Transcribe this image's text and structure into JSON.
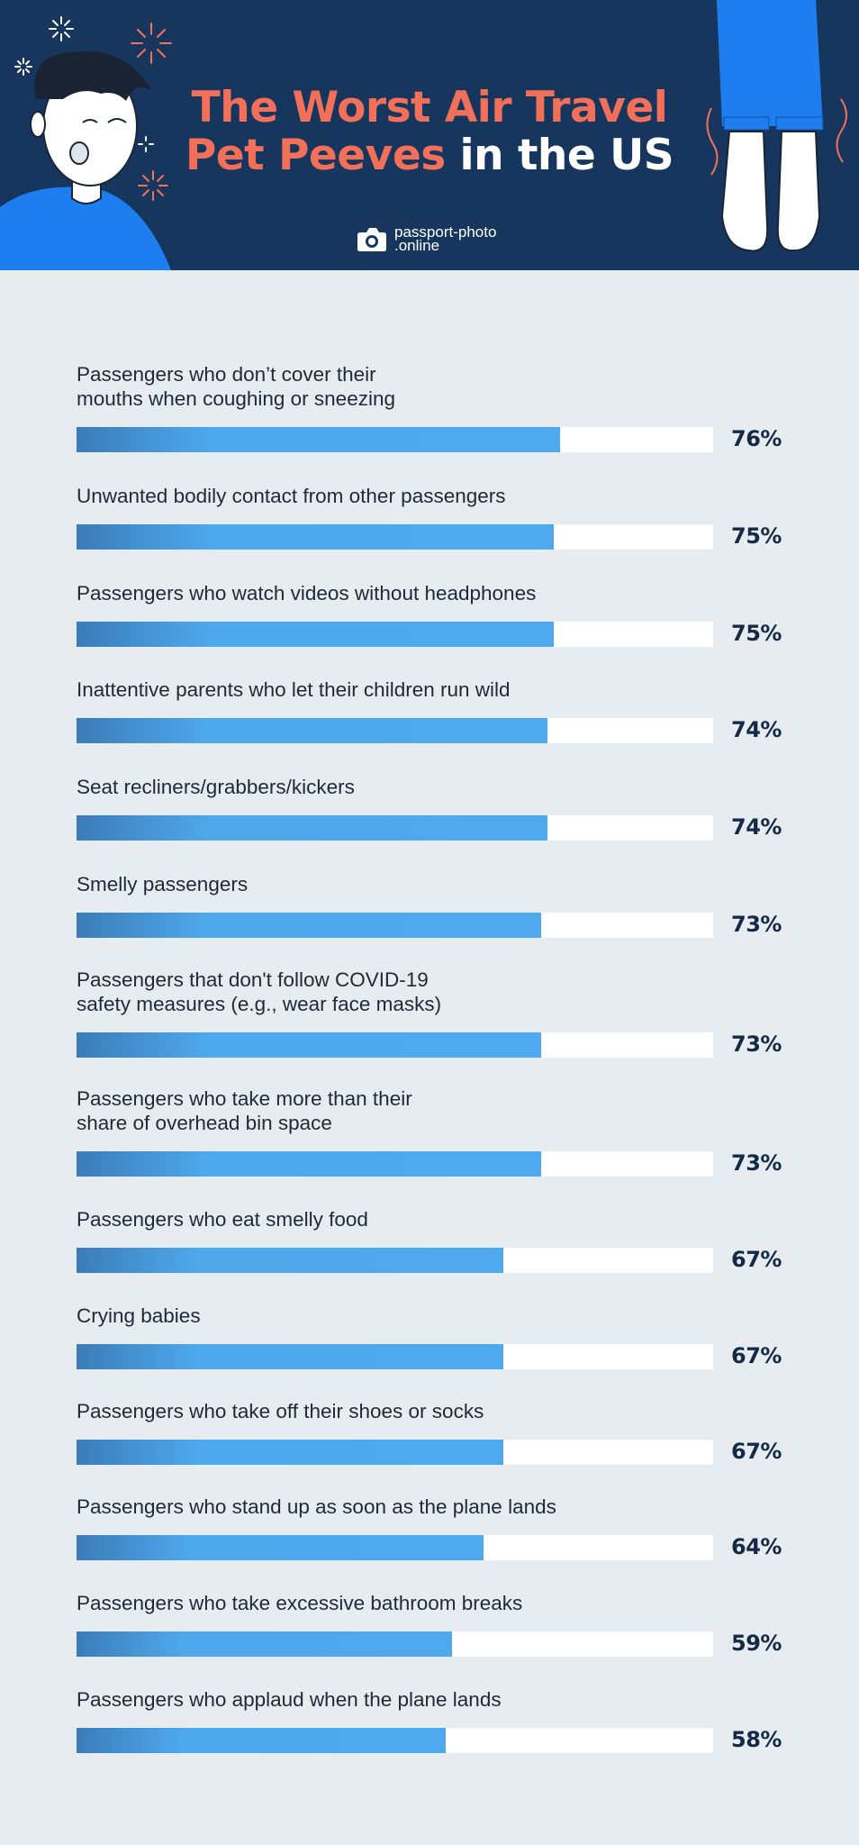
{
  "header": {
    "title_line1": "The Worst Air Travel",
    "title_line2_orange": "Pet Peeves",
    "title_line2_white": " in the US",
    "brand": "passport-photo\n.online",
    "brand_icon": "camera-icon",
    "colors": {
      "background": "#17365e",
      "accent": "#f2705a"
    }
  },
  "chart_data": {
    "type": "bar",
    "orientation": "horizontal",
    "value_suffix": "%",
    "xlim": [
      0,
      100
    ],
    "grid": false,
    "bar_color": "#4fa9ee",
    "categories": [
      "Passengers who don’t cover their\nmouths when coughing or sneezing",
      "Unwanted bodily contact from other passengers",
      "Passengers who watch videos without headphones",
      "Inattentive parents who let their children run wild",
      "Seat recliners/grabbers/kickers",
      "Smelly passengers",
      "Passengers that don't follow COVID-19\nsafety measures (e.g., wear face masks)",
      "Passengers who take more than their\nshare of overhead bin space",
      "Passengers who eat smelly food",
      "Crying babies",
      "Passengers who take off their shoes or socks",
      "Passengers who stand up as soon as the plane lands",
      "Passengers who take excessive bathroom breaks",
      "Passengers who applaud when the plane lands"
    ],
    "values": [
      76,
      75,
      75,
      74,
      74,
      73,
      73,
      73,
      67,
      67,
      67,
      64,
      59,
      58
    ],
    "value_labels": [
      "76%",
      "75%",
      "75%",
      "74%",
      "74%",
      "73%",
      "73%",
      "73%",
      "67%",
      "67%",
      "67%",
      "64%",
      "59%",
      "58%"
    ]
  }
}
